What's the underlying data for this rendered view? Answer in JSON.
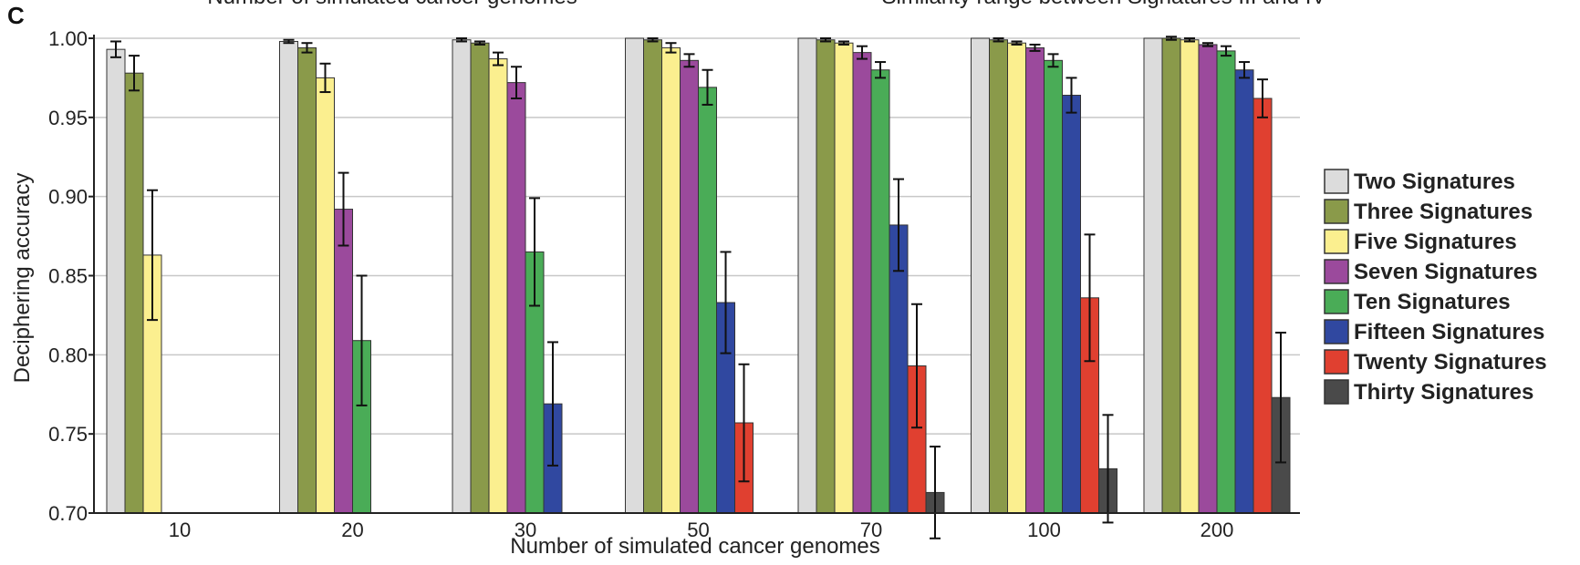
{
  "panel_letter": "C",
  "cut_titles": {
    "left": "Number of simulated cancer genomes",
    "right": "Similarity range between Signatures III and IV"
  },
  "chart_data": {
    "type": "bar",
    "xlabel": "Number of simulated cancer genomes",
    "ylabel": "Deciphering accuracy",
    "ylim": [
      0.7,
      1.0
    ],
    "yticks": [
      "0.70",
      "0.75",
      "0.80",
      "0.85",
      "0.90",
      "0.95",
      "1.00"
    ],
    "grid": true,
    "legend_position": "right",
    "categories": [
      "10",
      "20",
      "30",
      "50",
      "70",
      "100",
      "200"
    ],
    "series": [
      {
        "name": "Two Signatures",
        "color": "#dcdcdc",
        "values": [
          0.993,
          0.998,
          0.999,
          1.0,
          1.0,
          1.0,
          1.0
        ],
        "errors": [
          0.005,
          0.001,
          0.001,
          0.0,
          0.0,
          0.0,
          0.0
        ]
      },
      {
        "name": "Three Signatures",
        "color": "#8a9a4a",
        "values": [
          0.978,
          0.994,
          0.997,
          0.999,
          0.999,
          0.999,
          1.0
        ],
        "errors": [
          0.011,
          0.003,
          0.001,
          0.001,
          0.001,
          0.001,
          0.001
        ]
      },
      {
        "name": "Five Signatures",
        "color": "#fbef8f",
        "values": [
          0.863,
          0.975,
          0.987,
          0.994,
          0.997,
          0.997,
          0.999
        ],
        "errors": [
          0.041,
          0.009,
          0.004,
          0.003,
          0.001,
          0.001,
          0.001
        ]
      },
      {
        "name": "Seven Signatures",
        "color": "#9b4a9c",
        "values": [
          null,
          0.892,
          0.972,
          0.986,
          0.991,
          0.994,
          0.996
        ],
        "errors": [
          null,
          0.023,
          0.01,
          0.004,
          0.004,
          0.002,
          0.001
        ]
      },
      {
        "name": "Ten Signatures",
        "color": "#4aac57",
        "values": [
          null,
          0.809,
          0.865,
          0.969,
          0.98,
          0.986,
          0.992
        ],
        "errors": [
          null,
          0.041,
          0.034,
          0.011,
          0.005,
          0.004,
          0.003
        ]
      },
      {
        "name": "Fifteen Signatures",
        "color": "#3048a0",
        "values": [
          null,
          null,
          0.769,
          0.833,
          0.882,
          0.964,
          0.98
        ],
        "errors": [
          null,
          null,
          0.039,
          0.032,
          0.029,
          0.011,
          0.005
        ]
      },
      {
        "name": "Twenty Signatures",
        "color": "#e04030",
        "values": [
          null,
          null,
          null,
          0.757,
          0.793,
          0.836,
          0.962
        ],
        "errors": [
          null,
          null,
          null,
          0.037,
          0.039,
          0.04,
          0.012
        ]
      },
      {
        "name": "Thirty Signatures",
        "color": "#4a4a4a",
        "values": [
          null,
          null,
          null,
          null,
          0.713,
          0.728,
          0.773
        ],
        "errors": [
          null,
          null,
          null,
          null,
          0.029,
          0.034,
          0.041
        ]
      }
    ]
  }
}
